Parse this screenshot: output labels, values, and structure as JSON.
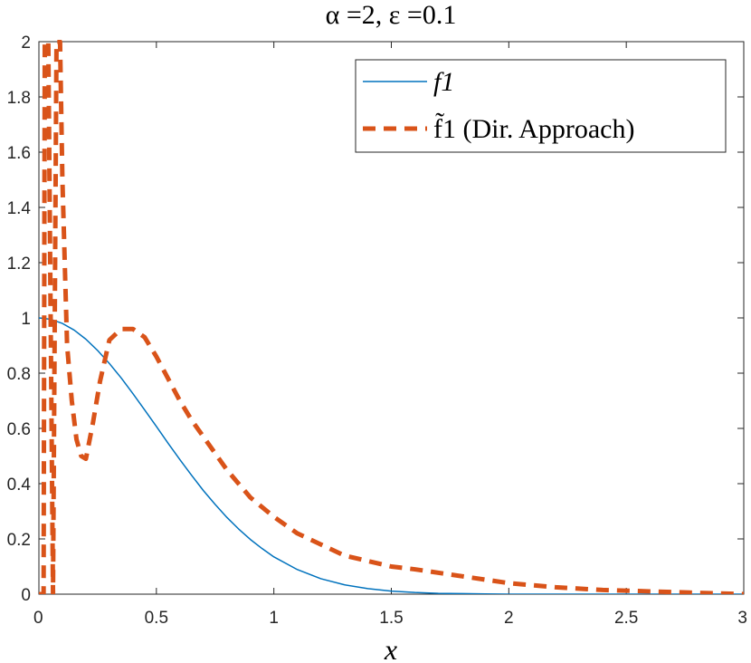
{
  "chart_data": {
    "type": "line",
    "title": "α =2, ε =0.1",
    "xlabel": "x",
    "ylabel": "",
    "xlim": [
      0,
      3
    ],
    "ylim": [
      0,
      2
    ],
    "xticks": [
      "0",
      "0.5",
      "1",
      "1.5",
      "2",
      "2.5",
      "3"
    ],
    "yticks": [
      "0",
      "0.2",
      "0.4",
      "0.6",
      "0.8",
      "1",
      "1.2",
      "1.4",
      "1.6",
      "1.8",
      "2"
    ],
    "legend_position": "top-right",
    "grid": false,
    "series": [
      {
        "name": "f1",
        "color": "#0072BD",
        "style": "solid",
        "x": [
          0,
          0.05,
          0.1,
          0.15,
          0.2,
          0.25,
          0.3,
          0.35,
          0.4,
          0.45,
          0.5,
          0.55,
          0.6,
          0.65,
          0.7,
          0.75,
          0.8,
          0.85,
          0.9,
          0.95,
          1.0,
          1.1,
          1.2,
          1.3,
          1.4,
          1.5,
          1.6,
          1.7,
          1.8,
          1.9,
          2.0,
          2.2,
          2.4,
          2.6,
          2.8,
          3.0
        ],
        "y": [
          1.0,
          0.995,
          0.98,
          0.956,
          0.923,
          0.882,
          0.835,
          0.783,
          0.726,
          0.667,
          0.607,
          0.546,
          0.487,
          0.43,
          0.375,
          0.325,
          0.278,
          0.236,
          0.198,
          0.165,
          0.135,
          0.089,
          0.056,
          0.034,
          0.02,
          0.011,
          0.006,
          0.003,
          0.002,
          0.001,
          0.0,
          0.0,
          0.0,
          0.0,
          0.0,
          0.0
        ]
      },
      {
        "name": "f̃1 (Dir. Approach)",
        "color": "#D95319",
        "style": "dashed",
        "x": [
          0.0,
          0.02,
          0.025,
          0.04,
          0.06,
          0.075,
          0.09,
          0.1,
          0.12,
          0.14,
          0.16,
          0.18,
          0.2,
          0.23,
          0.26,
          0.3,
          0.35,
          0.4,
          0.45,
          0.5,
          0.55,
          0.6,
          0.65,
          0.7,
          0.75,
          0.8,
          0.9,
          1.0,
          1.1,
          1.2,
          1.3,
          1.4,
          1.5,
          1.6,
          1.8,
          2.0,
          2.2,
          2.4,
          2.6,
          2.8,
          3.0
        ],
        "y": [
          0.0,
          0.0,
          2.0,
          2.0,
          0.0,
          2.0,
          2.0,
          1.5,
          0.9,
          0.7,
          0.56,
          0.5,
          0.49,
          0.62,
          0.77,
          0.92,
          0.96,
          0.96,
          0.93,
          0.86,
          0.78,
          0.7,
          0.63,
          0.57,
          0.51,
          0.45,
          0.35,
          0.28,
          0.22,
          0.18,
          0.14,
          0.12,
          0.1,
          0.09,
          0.065,
          0.04,
          0.025,
          0.015,
          0.01,
          0.005,
          0.0
        ]
      }
    ]
  }
}
